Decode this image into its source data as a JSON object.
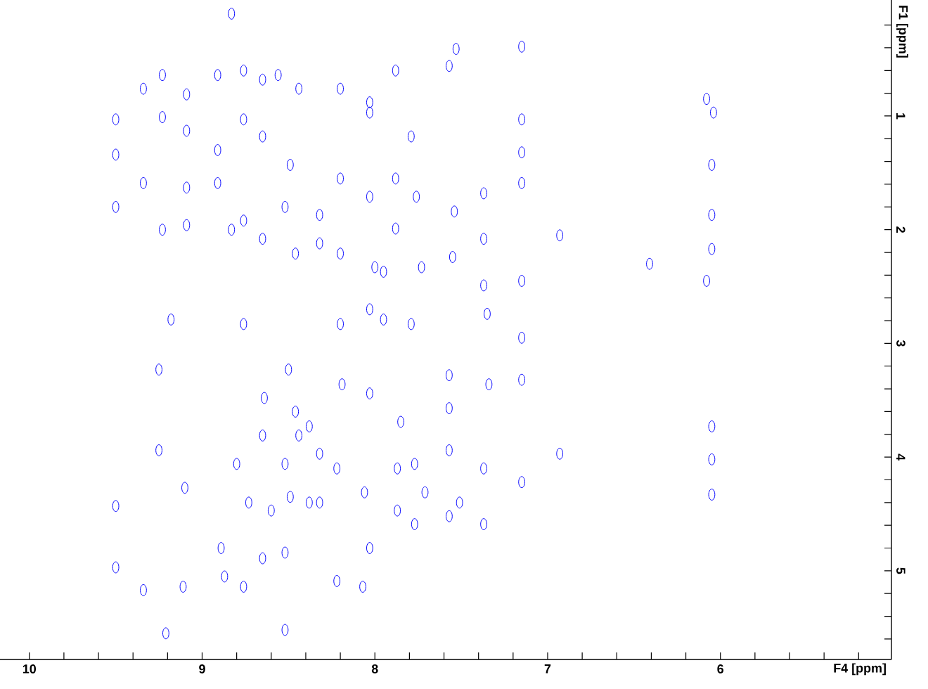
{
  "chart_data": {
    "type": "scatter",
    "xlabel": "F4 [ppm]",
    "ylabel": "F1 [ppm]",
    "xlim": [
      10.17,
      5.01
    ],
    "ylim": [
      5.78,
      -0.02
    ],
    "xticks": [
      10,
      {
        "value": 9.8,
        "label": null
      },
      {
        "value": 9.6,
        "label": null
      },
      {
        "value": 9.4,
        "label": null
      },
      {
        "value": 9.2,
        "label": null
      },
      9,
      {
        "value": 8.8,
        "label": null
      },
      {
        "value": 8.6,
        "label": null
      },
      {
        "value": 8.4,
        "label": null
      },
      {
        "value": 8.2,
        "label": null
      },
      8,
      {
        "value": 7.8,
        "label": null
      },
      {
        "value": 7.6,
        "label": null
      },
      {
        "value": 7.4,
        "label": null
      },
      {
        "value": 7.2,
        "label": null
      },
      7,
      {
        "value": 6.8,
        "label": null
      },
      {
        "value": 6.6,
        "label": null
      },
      {
        "value": 6.4,
        "label": null
      },
      {
        "value": 6.2,
        "label": null
      },
      6,
      {
        "value": 5.8,
        "label": null
      },
      {
        "value": 5.6,
        "label": null
      },
      {
        "value": 5.4,
        "label": null
      },
      {
        "value": 5.2,
        "label": null
      }
    ],
    "yticks": [
      {
        "value": 0.2,
        "label": null
      },
      {
        "value": 0.4,
        "label": null
      },
      {
        "value": 0.6,
        "label": null
      },
      {
        "value": 0.8,
        "label": null
      },
      1,
      {
        "value": 1.2,
        "label": null
      },
      {
        "value": 1.4,
        "label": null
      },
      {
        "value": 1.6,
        "label": null
      },
      {
        "value": 1.8,
        "label": null
      },
      2,
      {
        "value": 2.2,
        "label": null
      },
      {
        "value": 2.4,
        "label": null
      },
      {
        "value": 2.6,
        "label": null
      },
      {
        "value": 2.8,
        "label": null
      },
      3,
      {
        "value": 3.2,
        "label": null
      },
      {
        "value": 3.4,
        "label": null
      },
      {
        "value": 3.6,
        "label": null
      },
      {
        "value": 3.8,
        "label": null
      },
      4,
      {
        "value": 4.2,
        "label": null
      },
      {
        "value": 4.4,
        "label": null
      },
      {
        "value": 4.6,
        "label": null
      },
      {
        "value": 4.8,
        "label": null
      },
      5,
      {
        "value": 5.2,
        "label": null
      },
      {
        "value": 5.4,
        "label": null
      },
      {
        "value": 5.6,
        "label": null
      }
    ],
    "marker": "circle",
    "grid": false,
    "series": [
      {
        "color": "#0000ff",
        "x": [
          9.5,
          9.5,
          9.5,
          9.5,
          9.5,
          9.34,
          9.34,
          9.34,
          9.23,
          9.23,
          9.23,
          9.18,
          9.25,
          9.25,
          9.1,
          9.11,
          9.21,
          9.09,
          9.09,
          9.09,
          9.09,
          8.91,
          8.91,
          8.91,
          8.83,
          8.76,
          8.76,
          8.76,
          8.76,
          8.76,
          8.8,
          8.73,
          8.89,
          8.65,
          8.65,
          8.65,
          8.83,
          8.56,
          8.49,
          8.52,
          8.52,
          8.52,
          8.52,
          8.46,
          8.44,
          8.44,
          8.2,
          8.2,
          8.2,
          8.2,
          8.19,
          8.32,
          8.32,
          8.32,
          8.32,
          8.03,
          8.03,
          8.03,
          8.03,
          8.03,
          8.03,
          8.0,
          7.88,
          7.88,
          7.88,
          7.79,
          7.79,
          7.57,
          7.57,
          7.57,
          7.57,
          7.53,
          7.15,
          7.15,
          7.15,
          7.15,
          7.15,
          7.15,
          7.15,
          7.15,
          7.76,
          7.54,
          7.55,
          7.37,
          7.37,
          7.37,
          7.35,
          6.93,
          6.93,
          7.95,
          7.95,
          7.73,
          6.08,
          6.08,
          6.04,
          6.05,
          6.05,
          6.05,
          6.05,
          6.05,
          6.05,
          6.41,
          7.37,
          7.37,
          7.34,
          8.22,
          8.22,
          8.06,
          7.87,
          7.87,
          7.77,
          7.77,
          7.71,
          8.07,
          8.38,
          8.38,
          7.51,
          7.57,
          7.85,
          8.5,
          8.46,
          8.65,
          8.65,
          8.6,
          8.49,
          8.87,
          8.64
        ],
        "values": [
          1.03,
          1.34,
          1.8,
          4.43,
          4.97,
          0.76,
          1.59,
          5.17,
          0.64,
          1.01,
          2.0,
          2.79,
          3.23,
          3.94,
          4.27,
          5.14,
          5.55,
          0.81,
          1.13,
          1.63,
          1.96,
          0.64,
          1.3,
          1.59,
          2.0,
          2.83,
          5.14,
          0.6,
          1.03,
          1.92,
          4.06,
          4.4,
          4.8,
          0.68,
          1.18,
          2.08,
          0.1,
          0.64,
          1.43,
          1.8,
          4.06,
          4.84,
          5.52,
          2.21,
          0.76,
          3.81,
          0.76,
          1.55,
          2.21,
          2.83,
          3.36,
          1.87,
          2.12,
          3.97,
          4.4,
          0.88,
          1.71,
          0.97,
          2.7,
          3.44,
          4.8,
          2.33,
          0.6,
          1.55,
          1.99,
          1.18,
          2.83,
          0.56,
          3.28,
          3.57,
          3.94,
          0.41,
          0.39,
          1.03,
          1.32,
          1.59,
          2.45,
          2.95,
          3.32,
          4.22,
          1.71,
          1.84,
          2.24,
          1.68,
          2.08,
          2.49,
          2.74,
          2.05,
          3.97,
          2.79,
          2.37,
          2.33,
          0.85,
          2.45,
          0.97,
          1.43,
          1.87,
          2.17,
          3.73,
          4.02,
          4.33,
          2.3,
          4.1,
          4.59,
          3.36,
          4.1,
          5.09,
          4.31,
          4.1,
          4.47,
          4.06,
          4.59,
          4.31,
          5.14,
          3.73,
          4.4,
          4.4,
          4.52,
          3.69,
          3.23,
          3.6,
          3.81,
          4.89,
          4.47,
          4.35,
          5.05,
          3.48
        ]
      }
    ]
  }
}
